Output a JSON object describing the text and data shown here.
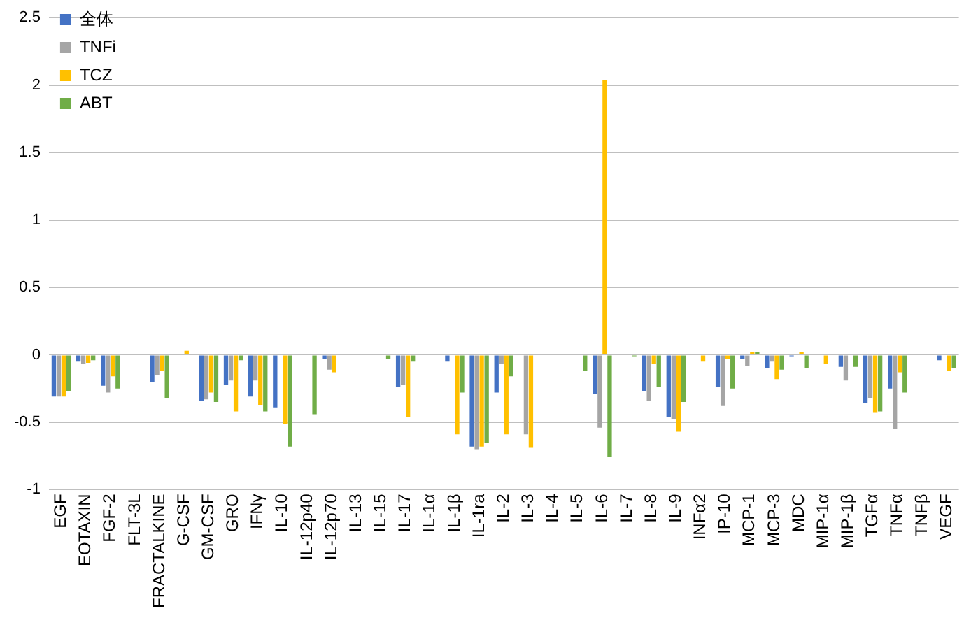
{
  "chart_data": {
    "type": "bar",
    "categories": [
      "EGF",
      "EOTAXIN",
      "FGF-2",
      "FLT-3L",
      "FRACTALKINE",
      "G-CSF",
      "GM-CSF",
      "GRO",
      "IFNγ",
      "IL-10",
      "IL-12p40",
      "IL-12p70",
      "IL-13",
      "IL-15",
      "IL-17",
      "IL-1α",
      "IL-1β",
      "IL-1ra",
      "IL-2",
      "IL-3",
      "IL-4",
      "IL-5",
      "IL-6",
      "IL-7",
      "IL-8",
      "IL-9",
      "INFα2",
      "IP-10",
      "MCP-1",
      "MCP-3",
      "MDC",
      "MIP-1α",
      "MIP-1β",
      "TGFα",
      "TNFα",
      "TNFβ",
      "VEGF"
    ],
    "series": [
      {
        "name": "全体",
        "color": "#4472c4",
        "values": [
          -0.31,
          -0.05,
          -0.23,
          null,
          -0.2,
          null,
          -0.34,
          -0.22,
          -0.31,
          -0.39,
          null,
          -0.03,
          null,
          null,
          -0.24,
          null,
          -0.05,
          -0.68,
          -0.28,
          null,
          null,
          null,
          -0.29,
          null,
          -0.27,
          -0.46,
          null,
          -0.24,
          -0.03,
          -0.1,
          -0.01,
          null,
          -0.09,
          -0.36,
          -0.25,
          null,
          -0.04
        ]
      },
      {
        "name": "TNFi",
        "color": "#a5a5a5",
        "values": [
          -0.31,
          -0.07,
          -0.28,
          null,
          -0.15,
          null,
          -0.33,
          -0.19,
          -0.19,
          null,
          null,
          -0.11,
          null,
          null,
          -0.22,
          null,
          null,
          -0.7,
          -0.07,
          -0.59,
          null,
          null,
          -0.54,
          null,
          -0.34,
          -0.48,
          null,
          -0.38,
          -0.08,
          -0.05,
          null,
          null,
          -0.19,
          -0.32,
          -0.55,
          null,
          null
        ]
      },
      {
        "name": "TCZ",
        "color": "#ffc000",
        "values": [
          -0.31,
          -0.06,
          -0.16,
          null,
          -0.12,
          0.03,
          -0.28,
          -0.42,
          -0.37,
          -0.51,
          null,
          -0.13,
          null,
          null,
          -0.46,
          null,
          -0.59,
          -0.68,
          -0.59,
          -0.69,
          null,
          null,
          2.04,
          null,
          -0.07,
          -0.57,
          -0.05,
          -0.03,
          0.02,
          -0.18,
          0.02,
          -0.07,
          null,
          -0.43,
          -0.13,
          null,
          -0.12
        ]
      },
      {
        "name": "ABT",
        "color": "#70ad47",
        "values": [
          -0.27,
          -0.04,
          -0.25,
          null,
          -0.32,
          null,
          -0.35,
          -0.04,
          -0.42,
          -0.68,
          -0.44,
          null,
          null,
          -0.03,
          -0.05,
          null,
          -0.28,
          -0.65,
          -0.16,
          null,
          null,
          -0.12,
          -0.76,
          -0.01,
          -0.24,
          -0.35,
          null,
          -0.25,
          0.02,
          -0.11,
          -0.1,
          null,
          -0.09,
          -0.42,
          -0.28,
          null,
          -0.1
        ]
      }
    ],
    "ylim": [
      -1,
      2.5
    ],
    "yticks": [
      -1,
      -0.5,
      0,
      0.5,
      1,
      1.5,
      2,
      2.5
    ],
    "grid": "y",
    "legend": "top left"
  }
}
